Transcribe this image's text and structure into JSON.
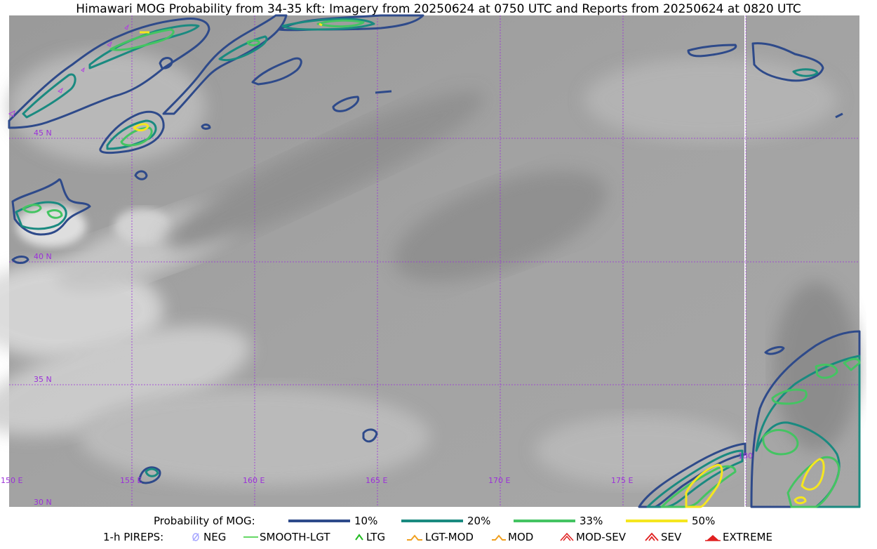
{
  "title": "Himawari MOG Probability from 34-35 kft: Imagery from 20250624 at 0750 UTC and Reports from 20250624 at 0820 UTC",
  "map": {
    "lat_labels": [
      "45 N",
      "40 N",
      "35 N",
      "30 N"
    ],
    "lon_labels": [
      "150 E",
      "155 E",
      "160 E",
      "165 E",
      "170 E",
      "175 E",
      "180"
    ],
    "grid_color": "#9b30d9",
    "contour_colors": {
      "p10": "#2e4a8a",
      "p20": "#1a8a80",
      "p33": "#44c462",
      "p50": "#f5e61f"
    }
  },
  "legend": {
    "probability_label": "Probability of MOG:",
    "levels": [
      {
        "label": "10%",
        "color": "#2e4a8a"
      },
      {
        "label": "20%",
        "color": "#1a8a80"
      },
      {
        "label": "33%",
        "color": "#44c462"
      },
      {
        "label": "50%",
        "color": "#f5e61f"
      }
    ],
    "pireps_label": "1-h PIREPS:",
    "pireps": [
      {
        "label": "NEG",
        "icon": "neg-icon",
        "color": "#a6a6ff"
      },
      {
        "label": "SMOOTH-LGT",
        "icon": "smooth-lgt-icon",
        "color": "#33cc33"
      },
      {
        "label": "LTG",
        "icon": "ltg-icon",
        "color": "#22bb22"
      },
      {
        "label": "LGT-MOD",
        "icon": "lgt-mod-icon",
        "color": "#f0a020"
      },
      {
        "label": "MOD",
        "icon": "mod-icon",
        "color": "#f0a020"
      },
      {
        "label": "MOD-SEV",
        "icon": "mod-sev-icon",
        "color": "#e02020"
      },
      {
        "label": "SEV",
        "icon": "sev-icon",
        "color": "#e02020"
      },
      {
        "label": "EXTREME",
        "icon": "extreme-icon",
        "color": "#e02020"
      }
    ]
  }
}
